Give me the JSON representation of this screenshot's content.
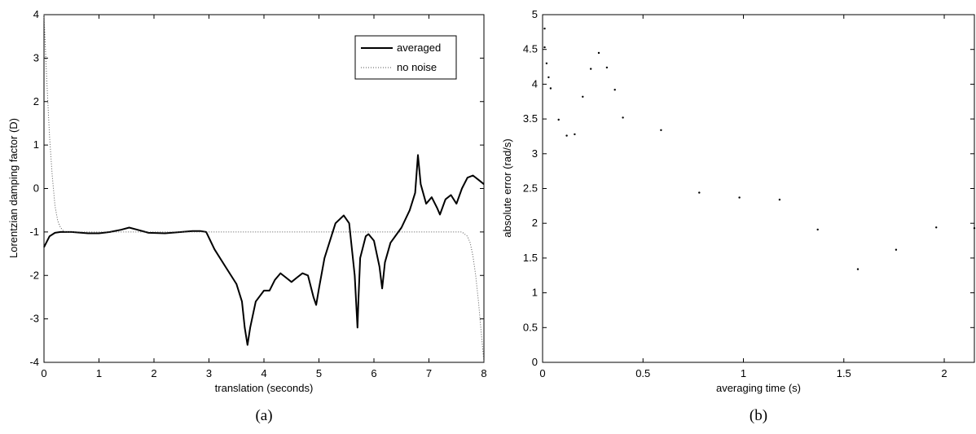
{
  "chart_data": [
    {
      "type": "line",
      "panel_label": "(a)",
      "xlabel": "translation (seconds)",
      "ylabel": "Lorentzian damping factor (D)",
      "xlim": [
        0,
        8
      ],
      "ylim": [
        -4,
        4
      ],
      "xticks": [
        "0",
        "1",
        "2",
        "3",
        "4",
        "5",
        "6",
        "7",
        "8"
      ],
      "yticks": [
        "-4",
        "-3",
        "-2",
        "-1",
        "0",
        "1",
        "2",
        "3",
        "4"
      ],
      "grid": false,
      "legend_position": "top-right",
      "series": [
        {
          "name": "averaged",
          "style": "solid",
          "x": [
            0,
            0.1,
            0.2,
            0.3,
            0.5,
            0.8,
            1.0,
            1.2,
            1.4,
            1.55,
            1.7,
            1.9,
            2.2,
            2.5,
            2.7,
            2.85,
            2.95,
            3.1,
            3.3,
            3.5,
            3.6,
            3.65,
            3.7,
            3.75,
            3.85,
            4.0,
            4.1,
            4.2,
            4.3,
            4.4,
            4.5,
            4.6,
            4.7,
            4.8,
            4.9,
            4.95,
            5.0,
            5.1,
            5.3,
            5.45,
            5.55,
            5.65,
            5.7,
            5.72,
            5.75,
            5.85,
            5.9,
            6.0,
            6.1,
            6.15,
            6.2,
            6.3,
            6.5,
            6.65,
            6.75,
            6.8,
            6.85,
            6.95,
            7.05,
            7.15,
            7.2,
            7.3,
            7.4,
            7.5,
            7.6,
            7.7,
            7.8,
            7.9,
            8.0
          ],
          "y": [
            -1.35,
            -1.1,
            -1.02,
            -1.0,
            -1.0,
            -1.03,
            -1.03,
            -1.0,
            -0.95,
            -0.9,
            -0.95,
            -1.02,
            -1.03,
            -1.0,
            -0.98,
            -0.98,
            -1.0,
            -1.4,
            -1.8,
            -2.2,
            -2.6,
            -3.2,
            -3.6,
            -3.2,
            -2.6,
            -2.35,
            -2.35,
            -2.1,
            -1.95,
            -2.05,
            -2.15,
            -2.05,
            -1.95,
            -2.0,
            -2.5,
            -2.68,
            -2.3,
            -1.6,
            -0.8,
            -0.62,
            -0.8,
            -2.0,
            -3.2,
            -2.5,
            -1.6,
            -1.1,
            -1.05,
            -1.2,
            -1.8,
            -2.3,
            -1.7,
            -1.25,
            -0.9,
            -0.5,
            -0.1,
            0.77,
            0.1,
            -0.35,
            -0.2,
            -0.45,
            -0.6,
            -0.25,
            -0.15,
            -0.35,
            0.0,
            0.25,
            0.3,
            0.2,
            0.1
          ]
        },
        {
          "name": "no noise",
          "style": "dotted",
          "x": [
            0,
            0.05,
            0.1,
            0.15,
            0.2,
            0.25,
            0.3,
            0.35,
            0.4,
            0.5,
            7.6,
            7.7,
            7.75,
            7.8,
            7.85,
            7.9,
            7.95,
            8.0
          ],
          "y": [
            4.0,
            2.5,
            1.2,
            0.3,
            -0.4,
            -0.75,
            -0.9,
            -0.97,
            -1.0,
            -1.0,
            -1.0,
            -1.1,
            -1.25,
            -1.55,
            -2.0,
            -2.6,
            -3.3,
            -4.0
          ]
        }
      ]
    },
    {
      "type": "scatter",
      "panel_label": "(b)",
      "xlabel": "averaging time (s)",
      "ylabel": "absolute error (rad/s)",
      "xlim": [
        0,
        2.15
      ],
      "ylim": [
        0,
        5
      ],
      "xticks": [
        "0",
        "0.5",
        "1",
        "1.5",
        "2"
      ],
      "xtick_values": [
        0,
        0.5,
        1,
        1.5,
        2
      ],
      "yticks": [
        "0",
        "0.5",
        "1",
        "1.5",
        "2",
        "2.5",
        "3",
        "3.5",
        "4",
        "4.5",
        "5"
      ],
      "ytick_values": [
        0,
        0.5,
        1,
        1.5,
        2,
        2.5,
        3,
        3.5,
        4,
        4.5,
        5
      ],
      "grid": false,
      "series": [
        {
          "x": [
            0.01,
            0.01,
            0.02,
            0.03,
            0.04,
            0.08,
            0.12,
            0.16,
            0.2,
            0.24,
            0.28,
            0.32,
            0.36,
            0.4,
            0.59,
            0.78,
            0.98,
            1.18,
            1.37,
            1.57,
            1.76,
            1.96,
            2.15
          ],
          "y": [
            4.8,
            4.53,
            4.3,
            4.1,
            3.94,
            3.49,
            3.26,
            3.28,
            3.82,
            4.22,
            4.45,
            4.24,
            3.92,
            3.52,
            3.34,
            2.44,
            2.37,
            2.34,
            1.91,
            1.34,
            1.62,
            1.94,
            1.93
          ]
        }
      ]
    }
  ]
}
